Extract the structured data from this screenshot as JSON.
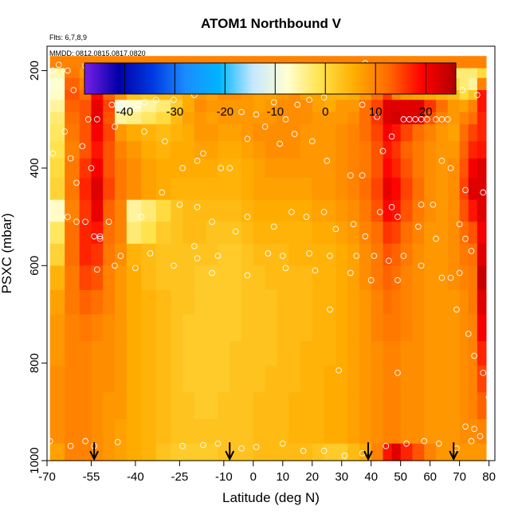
{
  "chart_data": {
    "type": "heatmap",
    "title": "ATOM1 Northbound V",
    "flights_label": "Flts: 6,7,8,9",
    "dates_label": "MMDD: 0812,0815,0817,0820",
    "xlabel": "Latitude (deg N)",
    "ylabel": "PSXC (mbar)",
    "xlim": [
      -70,
      82
    ],
    "ylim": [
      1000,
      150
    ],
    "y_reversed": true,
    "x_ticks": [
      -70,
      -55,
      -40,
      -25,
      -10,
      0,
      10,
      20,
      30,
      40,
      50,
      60,
      70,
      80
    ],
    "y_ticks": [
      200,
      400,
      600,
      800,
      1000
    ],
    "colorbar": {
      "range": [
        -48,
        26
      ],
      "tick_values": [
        -40,
        -30,
        -20,
        -10,
        0,
        10,
        20
      ],
      "tick_labels": [
        "-40",
        "-30",
        "-20",
        "-10",
        "0",
        "10",
        "20"
      ],
      "colors": [
        "#7a1fe8",
        "#0000a8",
        "#0037e0",
        "#1c8cff",
        "#00b5ff",
        "#c8e8ff",
        "#ffffd2",
        "#ffe24a",
        "#ffad00",
        "#ff6a00",
        "#ff0000",
        "#b00000"
      ]
    },
    "profile_markers_lat": [
      -54,
      -8,
      39,
      68
    ],
    "pressure_levels": [
      170,
      195,
      215,
      240,
      260,
      285,
      310,
      345,
      380,
      420,
      465,
      510,
      555,
      600,
      650,
      700,
      755,
      805,
      860,
      915,
      965,
      1000
    ],
    "latitude_edges": [
      -69,
      -64,
      -59,
      -55,
      -51,
      -47,
      -43,
      -38,
      -33,
      -28,
      -24,
      -20,
      -16,
      -12,
      -8,
      -4,
      0,
      4,
      8,
      12,
      16,
      20,
      24,
      28,
      32,
      36,
      40,
      44,
      47,
      50,
      54,
      58,
      62,
      66,
      70,
      73,
      76,
      79
    ],
    "v_field": [
      [
        10,
        10,
        10,
        10,
        10,
        10,
        10,
        10,
        10,
        10,
        10,
        10,
        10,
        10,
        10,
        10,
        10,
        10,
        10,
        10,
        10,
        10,
        10,
        10,
        10,
        10,
        10,
        10,
        10,
        10,
        10,
        10,
        10,
        10,
        10,
        10,
        10
      ],
      [
        -6,
        11,
        8,
        10,
        7,
        4,
        3,
        3,
        1,
        3,
        5,
        4,
        3,
        6,
        8,
        7,
        5,
        4,
        4,
        5,
        4,
        4,
        3,
        1,
        2,
        4,
        6,
        5,
        4,
        3,
        2,
        1,
        -1,
        -3,
        -3,
        -3,
        0
      ],
      [
        -8,
        13,
        10,
        16,
        9,
        6,
        3,
        1,
        0,
        3,
        5,
        6,
        5,
        8,
        10,
        8,
        6,
        5,
        6,
        7,
        6,
        6,
        4,
        2,
        4,
        5,
        8,
        10,
        7,
        6,
        4,
        3,
        2,
        0,
        -3,
        -5,
        10
      ],
      [
        -7,
        14,
        12,
        19,
        13,
        8,
        3,
        2,
        4,
        4,
        6,
        8,
        7,
        9,
        9,
        8,
        7,
        7,
        8,
        9,
        7,
        7,
        5,
        5,
        6,
        8,
        12,
        16,
        10,
        8,
        7,
        6,
        5,
        4,
        0,
        3,
        18
      ],
      [
        -5,
        13,
        14,
        21,
        15,
        -9,
        -7,
        -5,
        -3,
        2,
        6,
        9,
        8,
        8,
        8,
        8,
        7,
        8,
        9,
        9,
        9,
        7,
        6,
        8,
        8,
        12,
        15,
        22,
        22,
        22,
        22,
        16,
        12,
        8,
        7,
        10,
        18
      ],
      [
        -3,
        12,
        14,
        21,
        14,
        -5,
        -4,
        -2,
        0,
        4,
        7,
        8,
        7,
        8,
        8,
        8,
        8,
        8,
        9,
        9,
        9,
        8,
        8,
        8,
        9,
        12,
        16,
        22,
        23,
        22,
        22,
        14,
        10,
        8,
        10,
        12,
        17
      ],
      [
        -2,
        11,
        14,
        20,
        15,
        8,
        6,
        5,
        4,
        5,
        6,
        8,
        8,
        7,
        7,
        8,
        9,
        9,
        9,
        9,
        8,
        8,
        8,
        9,
        10,
        12,
        15,
        20,
        18,
        15,
        12,
        10,
        8,
        7,
        12,
        15,
        17
      ],
      [
        -1,
        10,
        14,
        18,
        14,
        10,
        8,
        6,
        5,
        6,
        6,
        7,
        7,
        6,
        6,
        7,
        8,
        9,
        9,
        9,
        8,
        8,
        8,
        9,
        10,
        11,
        14,
        18,
        16,
        13,
        11,
        9,
        8,
        8,
        13,
        17,
        18
      ],
      [
        0,
        11,
        16,
        20,
        14,
        11,
        9,
        7,
        6,
        6,
        6,
        6,
        6,
        5,
        5,
        6,
        7,
        8,
        8,
        8,
        8,
        8,
        8,
        9,
        10,
        11,
        14,
        19,
        17,
        14,
        11,
        9,
        8,
        9,
        14,
        20,
        22
      ],
      [
        1,
        11,
        17,
        22,
        15,
        11,
        9,
        7,
        6,
        5,
        5,
        5,
        5,
        5,
        5,
        6,
        7,
        7,
        7,
        7,
        7,
        8,
        8,
        9,
        10,
        12,
        15,
        21,
        19,
        15,
        12,
        9,
        8,
        9,
        15,
        22,
        22
      ],
      [
        -7,
        10,
        16,
        21,
        13,
        10,
        -5,
        -3,
        0,
        3,
        4,
        4,
        4,
        4,
        4,
        5,
        6,
        6,
        6,
        6,
        6,
        7,
        7,
        8,
        9,
        11,
        14,
        19,
        18,
        14,
        11,
        9,
        8,
        9,
        14,
        18,
        22
      ],
      [
        -2,
        12,
        17,
        18,
        12,
        10,
        -3,
        -1,
        2,
        3,
        4,
        4,
        3,
        3,
        3,
        4,
        5,
        5,
        5,
        5,
        5,
        6,
        6,
        7,
        8,
        10,
        12,
        16,
        15,
        12,
        10,
        8,
        8,
        9,
        12,
        14,
        20
      ],
      [
        1,
        12,
        17,
        16,
        11,
        9,
        5,
        4,
        3,
        3,
        3,
        3,
        3,
        2,
        2,
        3,
        4,
        4,
        4,
        5,
        5,
        5,
        5,
        6,
        7,
        9,
        11,
        14,
        13,
        11,
        9,
        8,
        8,
        9,
        11,
        12,
        22
      ],
      [
        5,
        11,
        15,
        14,
        10,
        8,
        6,
        4,
        3,
        3,
        3,
        2,
        2,
        2,
        2,
        3,
        3,
        4,
        4,
        4,
        4,
        5,
        5,
        6,
        7,
        9,
        11,
        13,
        12,
        10,
        9,
        8,
        8,
        9,
        10,
        11,
        24
      ],
      [
        7,
        11,
        13,
        12,
        10,
        8,
        6,
        5,
        4,
        3,
        3,
        2,
        2,
        2,
        2,
        3,
        3,
        3,
        4,
        4,
        4,
        5,
        5,
        6,
        7,
        8,
        10,
        12,
        11,
        10,
        9,
        8,
        8,
        8,
        9,
        11,
        22
      ],
      [
        8,
        10,
        11,
        10,
        9,
        8,
        6,
        5,
        4,
        3,
        2,
        2,
        2,
        2,
        2,
        3,
        3,
        3,
        4,
        4,
        4,
        5,
        5,
        6,
        7,
        8,
        10,
        11,
        11,
        10,
        9,
        8,
        8,
        8,
        9,
        10,
        20
      ],
      [
        8,
        10,
        10,
        9,
        9,
        8,
        6,
        5,
        4,
        3,
        2,
        2,
        2,
        2,
        3,
        3,
        3,
        3,
        4,
        4,
        5,
        5,
        5,
        6,
        7,
        8,
        9,
        10,
        10,
        9,
        9,
        8,
        8,
        8,
        9,
        10,
        17
      ],
      [
        9,
        10,
        10,
        9,
        9,
        8,
        6,
        5,
        4,
        3,
        2,
        2,
        2,
        2,
        3,
        3,
        3,
        4,
        4,
        4,
        5,
        5,
        6,
        6,
        7,
        8,
        9,
        10,
        10,
        9,
        9,
        8,
        8,
        8,
        9,
        10,
        15
      ],
      [
        9,
        10,
        10,
        9,
        8,
        8,
        6,
        5,
        4,
        3,
        3,
        2,
        2,
        3,
        3,
        3,
        4,
        4,
        4,
        5,
        5,
        5,
        6,
        6,
        7,
        8,
        9,
        10,
        10,
        9,
        9,
        8,
        8,
        8,
        9,
        10,
        13
      ],
      [
        9,
        10,
        10,
        9,
        8,
        7,
        6,
        5,
        4,
        3,
        3,
        3,
        3,
        3,
        3,
        3,
        4,
        4,
        4,
        5,
        5,
        5,
        6,
        6,
        7,
        8,
        9,
        10,
        10,
        9,
        9,
        8,
        8,
        8,
        9,
        9,
        10
      ],
      [
        7,
        10,
        10,
        9,
        8,
        7,
        6,
        5,
        3,
        2,
        2,
        2,
        2,
        3,
        3,
        3,
        4,
        4,
        4,
        4,
        4,
        3,
        2,
        2,
        4,
        6,
        10,
        18,
        22,
        17,
        14,
        10,
        8,
        8,
        8,
        8,
        8
      ]
    ],
    "observation_points": [
      [
        -68,
        200
      ],
      [
        -66,
        188
      ],
      [
        -63,
        200
      ],
      [
        -57,
        190
      ],
      [
        -61,
        240
      ],
      [
        -56,
        300
      ],
      [
        -53,
        300
      ],
      [
        -48,
        270
      ],
      [
        -45,
        270
      ],
      [
        -43,
        270
      ],
      [
        -41,
        275
      ],
      [
        -39,
        270
      ],
      [
        -37,
        265
      ],
      [
        -33,
        260
      ],
      [
        -27,
        260
      ],
      [
        -20,
        250
      ],
      [
        -15,
        240
      ],
      [
        -9,
        215
      ],
      [
        -4,
        285
      ],
      [
        1,
        290
      ],
      [
        7,
        265
      ],
      [
        11,
        300
      ],
      [
        15,
        270
      ],
      [
        19,
        260
      ],
      [
        24,
        255
      ],
      [
        33,
        225
      ],
      [
        37,
        270
      ],
      [
        42,
        295
      ],
      [
        47,
        335
      ],
      [
        51,
        300
      ],
      [
        53,
        300
      ],
      [
        55,
        300
      ],
      [
        57,
        300
      ],
      [
        59,
        300
      ],
      [
        62,
        300
      ],
      [
        64,
        300
      ],
      [
        66,
        300
      ],
      [
        71,
        240
      ],
      [
        76,
        250
      ],
      [
        38,
        185
      ],
      [
        -62,
        380
      ],
      [
        -60,
        430
      ],
      [
        -55,
        400
      ],
      [
        -47,
        315
      ],
      [
        -37,
        325
      ],
      [
        -30,
        345
      ],
      [
        -24,
        400
      ],
      [
        -19,
        385
      ],
      [
        -17,
        370
      ],
      [
        -11,
        400
      ],
      [
        -8,
        400
      ],
      [
        -2,
        340
      ],
      [
        4,
        315
      ],
      [
        9,
        350
      ],
      [
        14,
        330
      ],
      [
        20,
        345
      ],
      [
        25,
        385
      ],
      [
        33,
        415
      ],
      [
        37,
        415
      ],
      [
        44,
        365
      ],
      [
        47,
        480
      ],
      [
        57,
        475
      ],
      [
        61,
        475
      ],
      [
        64,
        385
      ],
      [
        67,
        400
      ],
      [
        72,
        445
      ],
      [
        78,
        450
      ],
      [
        -63,
        500
      ],
      [
        -60,
        510
      ],
      [
        -57,
        510
      ],
      [
        -52,
        540
      ],
      [
        -49,
        510
      ],
      [
        -38,
        500
      ],
      [
        -31,
        450
      ],
      [
        -25,
        475
      ],
      [
        -19,
        480
      ],
      [
        -14,
        510
      ],
      [
        -6,
        530
      ],
      [
        -2,
        500
      ],
      [
        7,
        520
      ],
      [
        13,
        490
      ],
      [
        18,
        500
      ],
      [
        24,
        490
      ],
      [
        28,
        525
      ],
      [
        34,
        515
      ],
      [
        38,
        540
      ],
      [
        43,
        490
      ],
      [
        49,
        500
      ],
      [
        56,
        520
      ],
      [
        62,
        545
      ],
      [
        70,
        515
      ],
      [
        72,
        545
      ],
      [
        -68,
        370
      ],
      [
        -64,
        325
      ],
      [
        -58,
        355
      ],
      [
        -54,
        540
      ],
      [
        -52,
        545
      ],
      [
        -45,
        580
      ],
      [
        -40,
        605
      ],
      [
        -35,
        575
      ],
      [
        -27,
        600
      ],
      [
        -19,
        585
      ],
      [
        -12,
        580
      ],
      [
        -2,
        620
      ],
      [
        5,
        575
      ],
      [
        10,
        580
      ],
      [
        19,
        575
      ],
      [
        26,
        580
      ],
      [
        35,
        580
      ],
      [
        41,
        580
      ],
      [
        46,
        590
      ],
      [
        51,
        580
      ],
      [
        67,
        625
      ],
      [
        70,
        615
      ],
      [
        74,
        570
      ],
      [
        -53,
        608
      ],
      [
        -47,
        600
      ],
      [
        -20,
        560
      ],
      [
        -14,
        615
      ],
      [
        11,
        605
      ],
      [
        21,
        610
      ],
      [
        33,
        615
      ],
      [
        40,
        630
      ],
      [
        49,
        630
      ],
      [
        57,
        600
      ],
      [
        64,
        625
      ],
      [
        69,
        690
      ],
      [
        73,
        740
      ],
      [
        75,
        785
      ],
      [
        78,
        820
      ],
      [
        80,
        870
      ],
      [
        -69,
        960
      ],
      [
        -62,
        970
      ],
      [
        -57,
        960
      ],
      [
        -54,
        970
      ],
      [
        -46,
        962
      ],
      [
        -24,
        970
      ],
      [
        -17,
        968
      ],
      [
        -12,
        965
      ],
      [
        -4,
        975
      ],
      [
        1,
        972
      ],
      [
        10,
        965
      ],
      [
        17,
        980
      ],
      [
        24,
        980
      ],
      [
        31,
        990
      ],
      [
        37,
        985
      ],
      [
        45,
        970
      ],
      [
        52,
        965
      ],
      [
        58,
        960
      ],
      [
        63,
        965
      ],
      [
        69,
        975
      ],
      [
        74,
        960
      ],
      [
        77,
        950
      ],
      [
        29,
        815
      ],
      [
        26,
        690
      ],
      [
        49,
        820
      ],
      [
        72,
        930
      ],
      [
        75,
        935
      ]
    ]
  }
}
